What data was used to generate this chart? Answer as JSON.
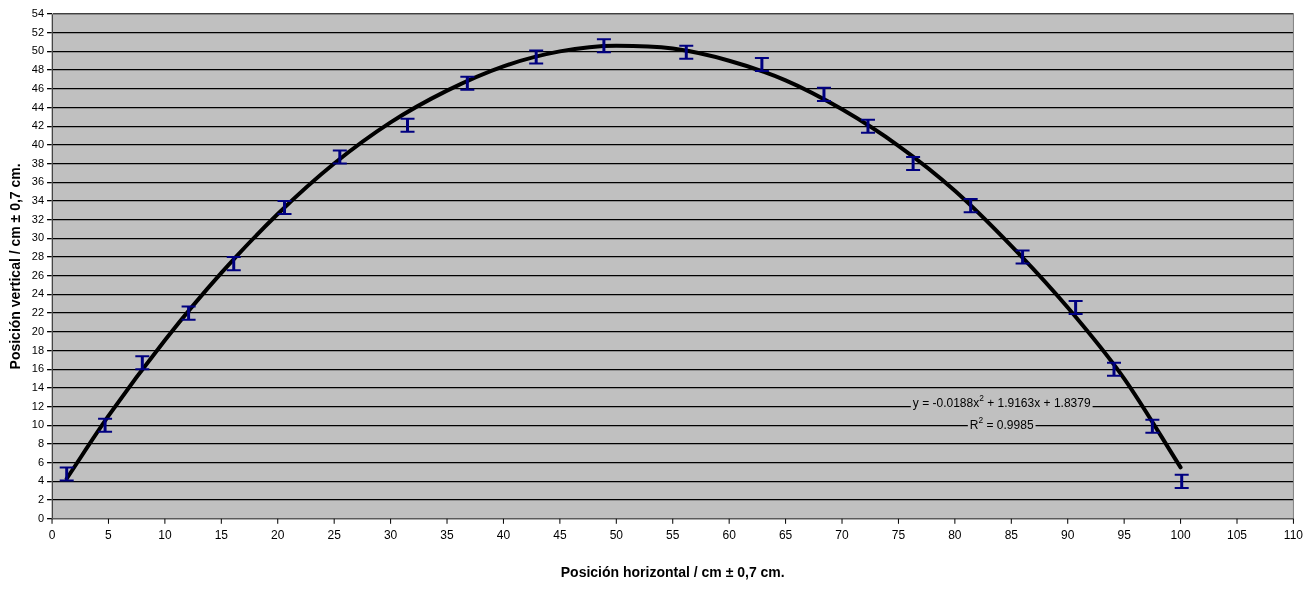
{
  "chart_data": {
    "type": "scatter",
    "xlabel": "Posición horizontal / cm ± 0,7 cm.",
    "ylabel": "Posición vertical / cm ± 0,7 cm.",
    "xlim": [
      0,
      110
    ],
    "xticks": [
      0,
      5,
      10,
      15,
      20,
      25,
      30,
      35,
      40,
      45,
      50,
      55,
      60,
      65,
      70,
      75,
      80,
      85,
      90,
      95,
      100,
      105,
      110
    ],
    "ylim": [
      0,
      54
    ],
    "yticks": [
      0,
      2,
      4,
      6,
      8,
      10,
      12,
      14,
      16,
      18,
      20,
      22,
      24,
      26,
      28,
      30,
      32,
      34,
      36,
      38,
      40,
      42,
      44,
      46,
      48,
      50,
      52,
      54
    ],
    "grid": "y",
    "annotations": [
      "y = -0.0188x$^{2}$ + 1.9163x + 1.8379",
      "R$^{2}$ = 0.9985"
    ],
    "series": [
      {
        "type": "scatter",
        "color": "#000080",
        "x": [
          1.3,
          4.7,
          8.0,
          12.1,
          16.1,
          20.6,
          25.5,
          31.5,
          36.8,
          42.9,
          48.9,
          56.2,
          62.9,
          68.4,
          72.3,
          76.3,
          81.4,
          86.0,
          90.7,
          94.1,
          97.5,
          100.1
        ],
        "values": [
          4.8,
          10.0,
          16.7,
          22.0,
          27.3,
          33.3,
          38.7,
          42.1,
          46.6,
          49.4,
          50.6,
          49.9,
          48.6,
          45.4,
          42.0,
          38.0,
          33.5,
          28.0,
          22.6,
          16.0,
          9.9,
          4.0
        ],
        "errors": [
          0.7,
          0.7,
          0.7,
          0.7,
          0.7,
          0.7,
          0.7,
          0.7,
          0.7,
          0.7,
          0.7,
          0.7,
          0.7,
          0.7,
          0.7,
          0.7,
          0.7,
          0.7,
          0.7,
          0.7,
          0.7,
          0.7
        ]
      },
      {
        "type": "line",
        "color": "#000000",
        "x": [
          1.3,
          5,
          10,
          15,
          20,
          25,
          30,
          35,
          40,
          45,
          50,
          55,
          60,
          65,
          70,
          75,
          80,
          85,
          90,
          95,
          100
        ],
        "values": [
          4.3,
          11.0,
          19.1,
          26.3,
          32.6,
          38.0,
          42.4,
          45.8,
          48.4,
          50.0,
          50.6,
          50.3,
          49.0,
          46.9,
          43.8,
          39.9,
          35.1,
          29.2,
          22.6,
          15.0,
          5.5
        ]
      }
    ]
  }
}
